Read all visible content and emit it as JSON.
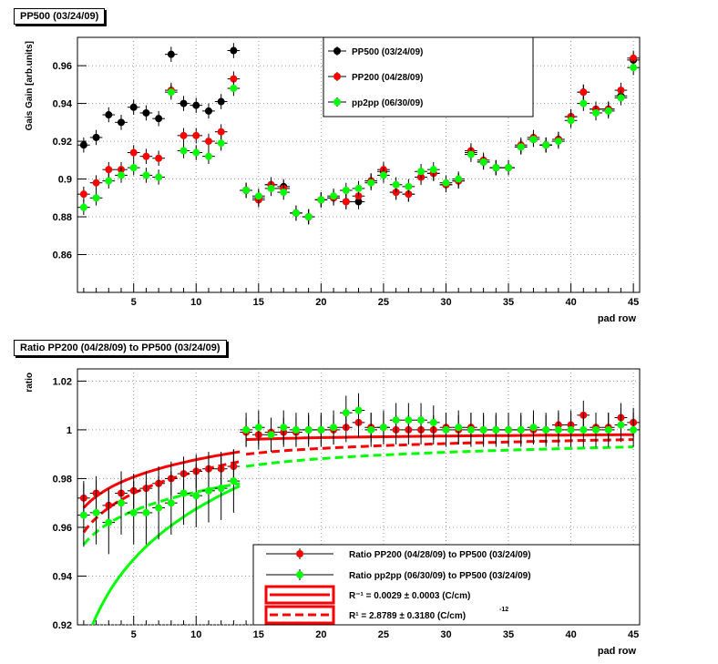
{
  "chart_data": [
    {
      "type": "scatter",
      "title": "PP500 (03/24/09)",
      "xlabel": "pad row",
      "ylabel": "Gais Gain [arb.units]",
      "xlim": [
        0.5,
        45.5
      ],
      "ylim": [
        0.84,
        0.975
      ],
      "xticks": [
        5,
        10,
        15,
        20,
        25,
        30,
        35,
        40,
        45
      ],
      "yticks": [
        0.86,
        0.88,
        0.9,
        0.92,
        0.94,
        0.96
      ],
      "ytick_labels": [
        "0.86",
        "0.88",
        "0.9",
        "0.92",
        "0.94",
        "0.96"
      ],
      "grid": true,
      "legend_position": "top-right",
      "series": [
        {
          "name": "PP500 (03/24/09)",
          "color": "#000000",
          "x": [
            1,
            2,
            3,
            4,
            5,
            6,
            7,
            8,
            9,
            10,
            11,
            12,
            13,
            14,
            15,
            16,
            17,
            18,
            19,
            20,
            21,
            22,
            23,
            24,
            25,
            26,
            27,
            28,
            29,
            30,
            31,
            32,
            33,
            34,
            35,
            36,
            37,
            38,
            39,
            40,
            41,
            42,
            43,
            44,
            45
          ],
          "y": [
            0.918,
            0.922,
            0.934,
            0.93,
            0.938,
            0.935,
            0.932,
            0.966,
            0.94,
            0.939,
            0.936,
            0.941,
            0.968,
            0.894,
            0.89,
            0.897,
            0.896,
            0.882,
            0.88,
            0.889,
            0.89,
            0.888,
            0.888,
            0.899,
            0.904,
            0.893,
            0.892,
            0.901,
            0.903,
            0.897,
            0.899,
            0.914,
            0.909,
            0.906,
            0.906,
            0.917,
            0.921,
            0.918,
            0.921,
            0.933,
            0.946,
            0.937,
            0.937,
            0.944,
            0.963
          ],
          "yerr": 0.004
        },
        {
          "name": "PP200 (04/28/09)",
          "color": "#ff0000",
          "x": [
            1,
            2,
            3,
            4,
            5,
            6,
            7,
            8,
            9,
            10,
            11,
            12,
            13,
            14,
            15,
            16,
            17,
            18,
            19,
            20,
            21,
            22,
            23,
            24,
            25,
            26,
            27,
            28,
            29,
            30,
            31,
            32,
            33,
            34,
            35,
            36,
            37,
            38,
            39,
            40,
            41,
            42,
            43,
            44,
            45
          ],
          "y": [
            0.892,
            0.898,
            0.905,
            0.905,
            0.914,
            0.912,
            0.911,
            0.947,
            0.923,
            0.923,
            0.92,
            0.925,
            0.953,
            0.894,
            0.889,
            0.897,
            0.895,
            0.882,
            0.88,
            0.889,
            0.89,
            0.888,
            0.891,
            0.899,
            0.905,
            0.893,
            0.892,
            0.901,
            0.903,
            0.897,
            0.899,
            0.915,
            0.91,
            0.906,
            0.906,
            0.918,
            0.922,
            0.918,
            0.921,
            0.933,
            0.946,
            0.937,
            0.937,
            0.947,
            0.964
          ],
          "yerr": 0.004
        },
        {
          "name": "pp2pp (06/30/09)",
          "color": "#00ff00",
          "x": [
            1,
            2,
            3,
            4,
            5,
            6,
            7,
            8,
            9,
            10,
            11,
            12,
            13,
            14,
            15,
            16,
            17,
            18,
            19,
            20,
            21,
            22,
            23,
            24,
            25,
            26,
            27,
            28,
            29,
            30,
            31,
            32,
            33,
            34,
            35,
            36,
            37,
            38,
            39,
            40,
            41,
            42,
            43,
            44,
            45
          ],
          "y": [
            0.885,
            0.89,
            0.899,
            0.902,
            0.906,
            0.902,
            0.901,
            0.946,
            0.915,
            0.914,
            0.912,
            0.919,
            0.948,
            0.894,
            0.891,
            0.895,
            0.893,
            0.882,
            0.88,
            0.889,
            0.891,
            0.894,
            0.895,
            0.898,
            0.902,
            0.897,
            0.896,
            0.904,
            0.905,
            0.898,
            0.9,
            0.913,
            0.909,
            0.906,
            0.906,
            0.917,
            0.921,
            0.918,
            0.92,
            0.931,
            0.94,
            0.935,
            0.936,
            0.943,
            0.959
          ],
          "yerr": 0.004
        }
      ]
    },
    {
      "type": "scatter",
      "title": "Ratio PP200 (04/28/09) to PP500 (03/24/09)",
      "xlabel": "pad row",
      "ylabel": "ratio",
      "xlim": [
        0.5,
        45.5
      ],
      "ylim": [
        0.92,
        1.025
      ],
      "xticks": [
        5,
        10,
        15,
        20,
        25,
        30,
        35,
        40,
        45
      ],
      "yticks": [
        0.92,
        0.94,
        0.96,
        0.98,
        1.0,
        1.02
      ],
      "ytick_labels": [
        "0.92",
        "0.94",
        "0.96",
        "0.98",
        "1",
        "1.02"
      ],
      "grid": true,
      "legend_position": "bottom-right",
      "series": [
        {
          "name": "Ratio PP200 (04/28/09) to PP500 (03/24/09)",
          "color": "#ff0000",
          "x": [
            1,
            2,
            3,
            4,
            5,
            6,
            7,
            8,
            9,
            10,
            11,
            12,
            13,
            14,
            15,
            16,
            17,
            18,
            19,
            20,
            21,
            22,
            23,
            24,
            25,
            26,
            27,
            28,
            29,
            30,
            31,
            32,
            33,
            34,
            35,
            36,
            37,
            38,
            39,
            40,
            41,
            42,
            43,
            44,
            45
          ],
          "y": [
            0.972,
            0.974,
            0.969,
            0.974,
            0.975,
            0.976,
            0.978,
            0.98,
            0.982,
            0.983,
            0.984,
            0.984,
            0.985,
            0.999,
            0.998,
            0.999,
            0.999,
            0.999,
            1.0,
            1.0,
            1.0,
            1.001,
            1.003,
            1.001,
            1.001,
            1.0,
            1.0,
            1.0,
            1.0,
            1.001,
            1.0,
            1.001,
            1.0,
            1.0,
            1.0,
            1.0,
            1.0,
            1.0,
            1.002,
            1.002,
            1.006,
            1.001,
            1.001,
            1.005,
            1.003
          ],
          "yerr": [
            0.007,
            0.007,
            0.007,
            0.007,
            0.007,
            0.007,
            0.007,
            0.007,
            0.007,
            0.007,
            0.007,
            0.007,
            0.007,
            0.006,
            0.006,
            0.006,
            0.006,
            0.006,
            0.006,
            0.006,
            0.006,
            0.006,
            0.006,
            0.006,
            0.006,
            0.006,
            0.006,
            0.006,
            0.006,
            0.006,
            0.006,
            0.006,
            0.006,
            0.006,
            0.006,
            0.006,
            0.006,
            0.006,
            0.006,
            0.006,
            0.006,
            0.006,
            0.006,
            0.006,
            0.006
          ]
        },
        {
          "name": "Ratio pp2pp (06/30/09) to PP500 (03/24/09)",
          "color": "#00ff00",
          "x": [
            1,
            2,
            3,
            4,
            5,
            6,
            7,
            8,
            9,
            10,
            11,
            12,
            13,
            14,
            15,
            16,
            17,
            18,
            19,
            20,
            21,
            22,
            23,
            24,
            25,
            26,
            27,
            28,
            29,
            30,
            31,
            32,
            33,
            34,
            35,
            36,
            37,
            38,
            39,
            40,
            41,
            42,
            43,
            44,
            45
          ],
          "y": [
            0.965,
            0.966,
            0.962,
            0.97,
            0.966,
            0.966,
            0.968,
            0.97,
            0.974,
            0.973,
            0.975,
            0.976,
            0.979,
            1.0,
            1.001,
            0.998,
            1.001,
            1.0,
            1.0,
            1.0,
            1.001,
            1.007,
            1.008,
            1.0,
            1.001,
            1.004,
            1.004,
            1.004,
            1.003,
            1.0,
            1.001,
            1.0,
            1.0,
            1.0,
            1.0,
            1.0,
            1.001,
            1.0,
            1.0,
            1.0,
            1.0,
            1.0,
            1.0,
            1.002,
            1.0
          ],
          "yerr": [
            0.013,
            0.013,
            0.013,
            0.013,
            0.013,
            0.013,
            0.013,
            0.013,
            0.013,
            0.013,
            0.013,
            0.013,
            0.013,
            0.007,
            0.007,
            0.007,
            0.007,
            0.007,
            0.007,
            0.007,
            0.007,
            0.007,
            0.007,
            0.007,
            0.007,
            0.007,
            0.007,
            0.007,
            0.007,
            0.007,
            0.007,
            0.007,
            0.007,
            0.007,
            0.007,
            0.007,
            0.007,
            0.007,
            0.007,
            0.007,
            0.007,
            0.007,
            0.007,
            0.007,
            0.007
          ]
        }
      ],
      "fits": [
        {
          "style": "solid",
          "color": "#ff0000",
          "x_start": 1,
          "x_end": 13.5,
          "y_start": 0.968,
          "y_end": 0.991
        },
        {
          "style": "solid",
          "color": "#ff0000",
          "x_start": 14,
          "x_end": 45,
          "y_start": 0.996,
          "y_end": 0.998
        },
        {
          "style": "dashed",
          "color": "#ff0000",
          "x_start": 1,
          "x_end": 13.5,
          "y_start": 0.958,
          "y_end": 0.987
        },
        {
          "style": "dashed",
          "color": "#ff0000",
          "x_start": 14,
          "x_end": 45,
          "y_start": 0.99,
          "y_end": 0.996
        },
        {
          "style": "solid",
          "color": "#00ff00",
          "x_start": 1,
          "x_end": 13.5,
          "y_start": 0.91,
          "y_end": 0.977
        },
        {
          "style": "dashed",
          "color": "#00ff00",
          "x_start": 1,
          "x_end": 13.5,
          "y_start": 0.953,
          "y_end": 0.978
        },
        {
          "style": "dashed",
          "color": "#00ff00",
          "x_start": 14,
          "x_end": 45,
          "y_start": 0.985,
          "y_end": 0.993
        }
      ],
      "fit_legend": [
        {
          "label": "R⁻¹ = 0.0029  ± 0.0003 (C/cm)",
          "style": "solid"
        },
        {
          "label": "R¹ = 2.8789  ± 0.3180 (C/cm)",
          "style": "dashed",
          "exponent": "-12"
        }
      ]
    }
  ]
}
